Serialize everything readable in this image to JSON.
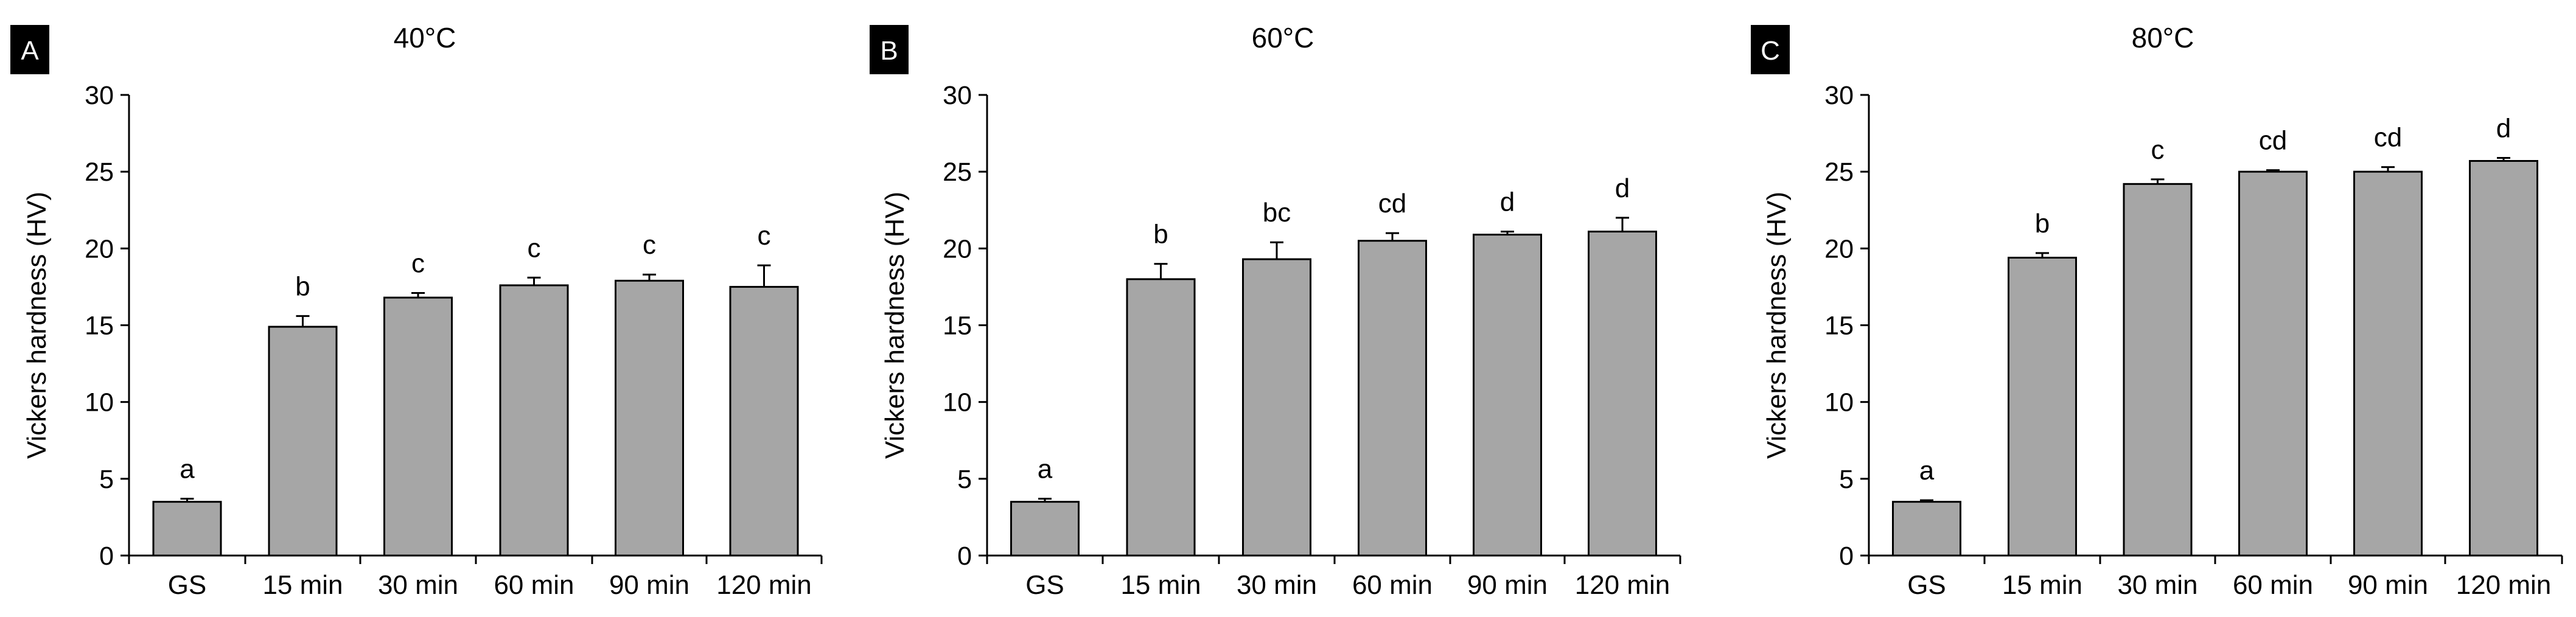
{
  "chart_data": [
    {
      "type": "bar",
      "panel_label": "A",
      "title": "40°C",
      "xlabel": "",
      "ylabel": "Vickers hardness (HV)",
      "ylim": [
        0,
        30
      ],
      "yticks": [
        "0",
        "5",
        "10",
        "15",
        "20",
        "25",
        "30"
      ],
      "grid": false,
      "categories": [
        "GS",
        "15 min",
        "30 min",
        "60 min",
        "90 min",
        "120 min"
      ],
      "values": [
        3.5,
        14.9,
        16.8,
        17.6,
        17.9,
        17.5
      ],
      "errors": [
        0.2,
        0.7,
        0.3,
        0.5,
        0.4,
        1.4
      ],
      "significance_letters": [
        "a",
        "b",
        "c",
        "c",
        "c",
        "c"
      ],
      "bar_color": "#a6a6a6"
    },
    {
      "type": "bar",
      "panel_label": "B",
      "title": "60°C",
      "xlabel": "",
      "ylabel": "Vickers hardness (HV)",
      "ylim": [
        0,
        30
      ],
      "yticks": [
        "0",
        "5",
        "10",
        "15",
        "20",
        "25",
        "30"
      ],
      "grid": false,
      "categories": [
        "GS",
        "15 min",
        "30 min",
        "60 min",
        "90 min",
        "120 min"
      ],
      "values": [
        3.5,
        18.0,
        19.3,
        20.5,
        20.9,
        21.1
      ],
      "errors": [
        0.2,
        1.0,
        1.1,
        0.5,
        0.2,
        0.9
      ],
      "significance_letters": [
        "a",
        "b",
        "bc",
        "cd",
        "d",
        "d"
      ],
      "bar_color": "#a6a6a6"
    },
    {
      "type": "bar",
      "panel_label": "C",
      "title": "80°C",
      "xlabel": "",
      "ylabel": "Vickers hardness (HV)",
      "ylim": [
        0,
        30
      ],
      "yticks": [
        "0",
        "5",
        "10",
        "15",
        "20",
        "25",
        "30"
      ],
      "grid": false,
      "categories": [
        "GS",
        "15 min",
        "30 min",
        "60 min",
        "90 min",
        "120 min"
      ],
      "values": [
        3.5,
        19.4,
        24.2,
        25.0,
        25.0,
        25.7
      ],
      "errors": [
        0.1,
        0.3,
        0.3,
        0.1,
        0.3,
        0.2
      ],
      "significance_letters": [
        "a",
        "b",
        "c",
        "cd",
        "cd",
        "d"
      ],
      "bar_color": "#a6a6a6"
    }
  ]
}
